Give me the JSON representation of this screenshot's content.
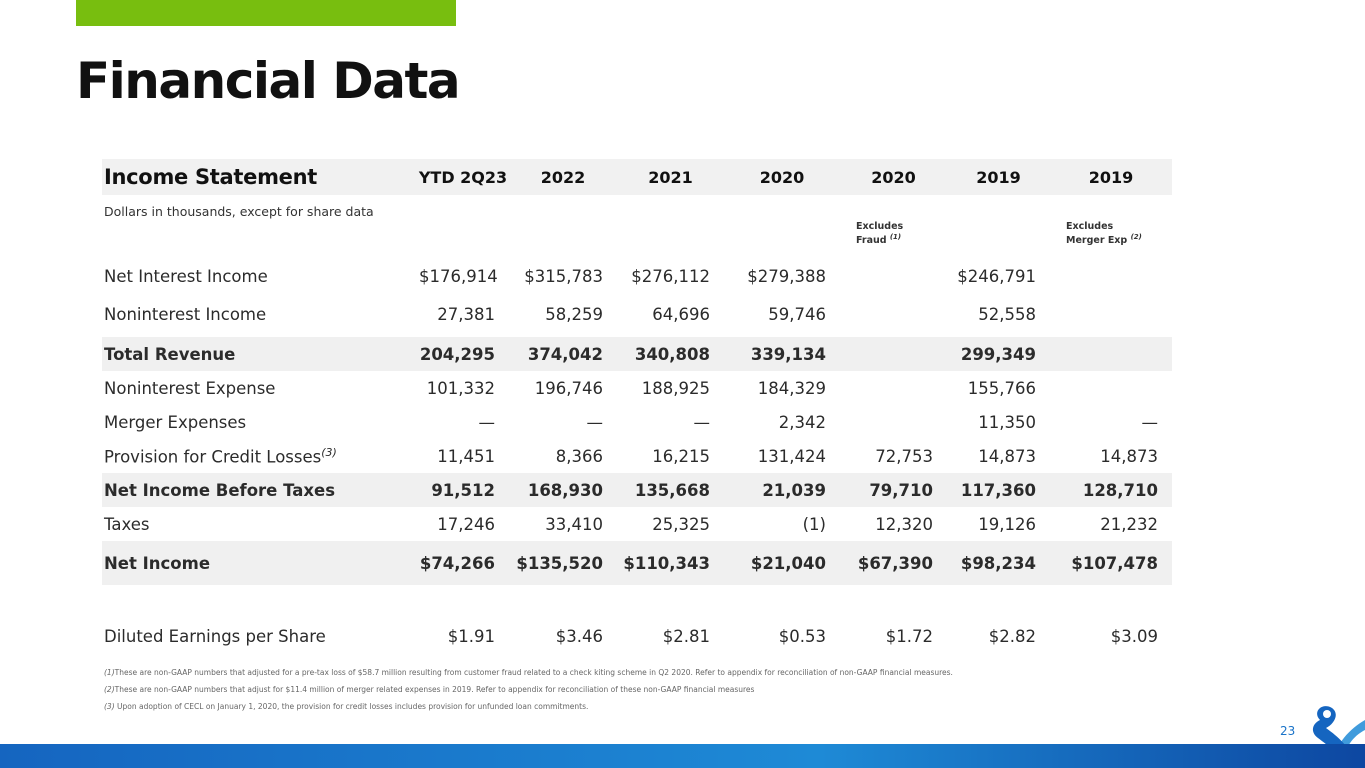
{
  "header": {
    "title": "Financial Data"
  },
  "table": {
    "title": "Income Statement",
    "columns": [
      "YTD 2Q23",
      "2022",
      "2021",
      "2020",
      "2020",
      "2019",
      "2019"
    ],
    "unit_note": "Dollars in thousands, except for share data",
    "excludes_fraud": {
      "line1": "Excludes",
      "line2": "Fraud",
      "ref": "(1)"
    },
    "excludes_merger": {
      "line1": "Excludes",
      "line2": "Merger Exp",
      "ref": "(2)"
    },
    "rows": [
      {
        "label": "Net Interest Income",
        "values": [
          "$176,914",
          "$315,783",
          "$276,112",
          "$279,388",
          "",
          "$246,791",
          ""
        ]
      },
      {
        "label": "Noninterest Income",
        "values": [
          "27,381",
          "58,259",
          "64,696",
          "59,746",
          "",
          "52,558",
          ""
        ]
      },
      {
        "label": "Total Revenue",
        "values": [
          "204,295",
          "374,042",
          "340,808",
          "339,134",
          "",
          "299,349",
          ""
        ]
      },
      {
        "label": "Noninterest Expense",
        "values": [
          "101,332",
          "196,746",
          "188,925",
          "184,329",
          "",
          "155,766",
          ""
        ]
      },
      {
        "label": "Merger Expenses",
        "values": [
          "—",
          "—",
          "—",
          "2,342",
          "",
          "11,350",
          "—"
        ]
      },
      {
        "label": "Provision for Credit Losses",
        "ref": "(3)",
        "values": [
          "11,451",
          "8,366",
          "16,215",
          "131,424",
          "72,753",
          "14,873",
          "14,873"
        ]
      },
      {
        "label": "Net Income Before Taxes",
        "values": [
          "91,512",
          "168,930",
          "135,668",
          "21,039",
          "79,710",
          "117,360",
          "128,710"
        ]
      },
      {
        "label": "Taxes",
        "values": [
          "17,246",
          "33,410",
          "25,325",
          "(1)",
          "12,320",
          "19,126",
          "21,232"
        ]
      },
      {
        "label": "Net Income",
        "values": [
          "$74,266",
          "$135,520",
          "$110,343",
          "$21,040",
          "$67,390",
          "$98,234",
          "$107,478"
        ]
      },
      {
        "label": "Diluted Earnings per Share",
        "values": [
          "$1.91",
          "$3.46",
          "$2.81",
          "$0.53",
          "$1.72",
          "$2.82",
          "$3.09"
        ]
      }
    ]
  },
  "footnotes": [
    {
      "mark": "(1)",
      "text": "These are non-GAAP numbers that adjusted for a pre-tax loss of $58.7 million resulting from customer fraud related to a check kiting scheme in Q2 2020. Refer to appendix for reconciliation of non-GAAP financial measures."
    },
    {
      "mark": "(2)",
      "text": "These are non-GAAP numbers that adjust for $11.4 million of merger related expenses in 2019. Refer to appendix for reconciliation of these non-GAAP financial measures"
    },
    {
      "mark": "(3)",
      "text": " Upon adoption of CECL on January 1, 2020, the provision for credit losses includes provision for unfunded loan commitments."
    }
  ],
  "page_number": "23",
  "colors": {
    "accent": "#78be0f",
    "brand_blue": "#1565c0"
  }
}
